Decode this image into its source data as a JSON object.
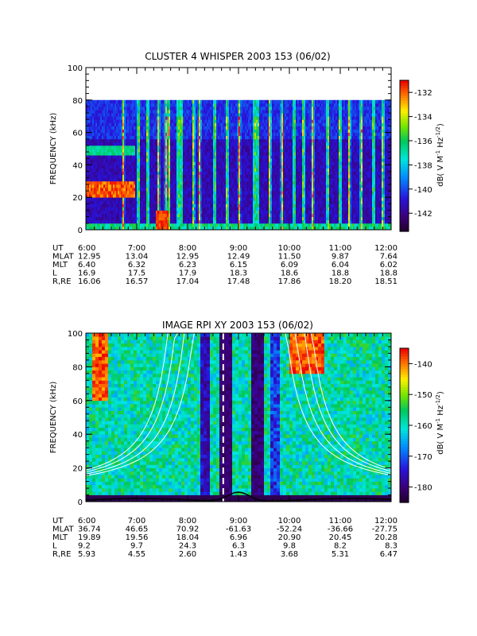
{
  "chart_data": [
    {
      "type": "heatmap",
      "title": "CLUSTER 4 WHISPER 2003 153 (06/02)",
      "ylabel": "FREQUENCY (kHz)",
      "ylim": [
        0,
        100
      ],
      "y_ticks": [
        "0",
        "20",
        "40",
        "60",
        "80",
        "100"
      ],
      "x_ticks": [
        "6:00",
        "7:00",
        "8:00",
        "9:00",
        "10:00",
        "11:00",
        "12:00"
      ],
      "data_extent_khz": 80,
      "colorbar": {
        "label_main": "dB( V M",
        "label_exp1": "-1",
        "label_mid": " Hz",
        "label_exp2": "-1/2",
        "label_end": ")",
        "ticks": [
          "-132",
          "-134",
          "-136",
          "-138",
          "-140",
          "-142"
        ],
        "range": [
          -143.5,
          -131
        ]
      },
      "ephemeris": [
        {
          "label": "UT",
          "values": []
        },
        {
          "label": "MLAT",
          "values": [
            "12.95",
            "13.04",
            "12.95",
            "12.49",
            "11.50",
            "9.87",
            "7.64"
          ]
        },
        {
          "label": "MLT",
          "values": [
            "6.40",
            "6.32",
            "6.23",
            "6.15",
            "6.09",
            "6.04",
            "6.02"
          ]
        },
        {
          "label": "L",
          "values": [
            "16.9",
            "17.5",
            "17.9",
            "18.3",
            "18.6",
            "18.8",
            "18.8"
          ]
        },
        {
          "label": "R,RE",
          "values": [
            "16.06",
            "16.57",
            "17.04",
            "17.48",
            "17.86",
            "18.20",
            "18.51"
          ]
        }
      ]
    },
    {
      "type": "heatmap",
      "title": "IMAGE RPI XY 2003 153 (06/02)",
      "ylabel": "FREQUENCY (kHz)",
      "ylim": [
        0,
        100
      ],
      "y_ticks": [
        "0",
        "20",
        "40",
        "60",
        "80",
        "100"
      ],
      "x_ticks": [
        "6:00",
        "7:00",
        "8:00",
        "9:00",
        "10:00",
        "11:00",
        "12:00"
      ],
      "colorbar": {
        "label_main": "dB( V M",
        "label_exp1": "-1",
        "label_mid": " Hz",
        "label_exp2": "-1/2",
        "label_end": ")",
        "ticks": [
          "-140",
          "-150",
          "-160",
          "-170",
          "-180"
        ],
        "range": [
          -185,
          -135
        ]
      },
      "ephemeris": [
        {
          "label": "UT",
          "values": []
        },
        {
          "label": "MLAT",
          "values": [
            "36.74",
            "46.65",
            "70.92",
            "-61.63",
            "-52.24",
            "-36.66",
            "-27.75"
          ]
        },
        {
          "label": "MLT",
          "values": [
            "19.89",
            "19.56",
            "18.04",
            "6.96",
            "20.90",
            "20.45",
            "20.28"
          ]
        },
        {
          "label": "L",
          "values": [
            "9.2",
            "9.7",
            "24.3",
            "6.3",
            "9.8",
            "8.2",
            "8.3"
          ]
        },
        {
          "label": "R,RE",
          "values": [
            "5.93",
            "4.55",
            "2.60",
            "1.43",
            "3.68",
            "5.31",
            "6.47"
          ]
        }
      ]
    }
  ]
}
